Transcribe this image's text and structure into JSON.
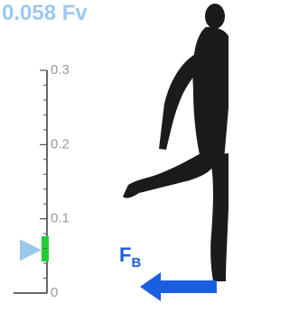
{
  "readout": {
    "value": 0.058,
    "unit": "Fv"
  },
  "scale": {
    "ticks": [
      0,
      0.1,
      0.2,
      0.3
    ]
  },
  "force_label": {
    "main": "F",
    "sub": "B"
  }
}
